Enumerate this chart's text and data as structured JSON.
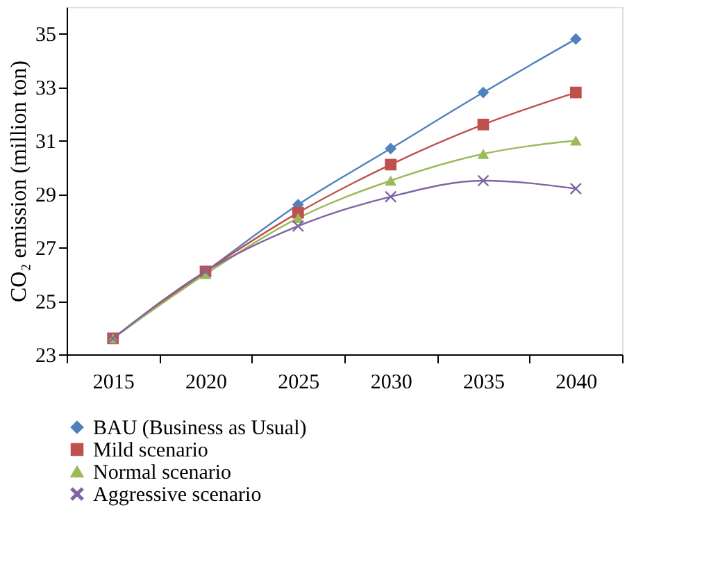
{
  "chart_data": {
    "type": "line",
    "ylabel": "CO₂ emission (million ton)",
    "categories": [
      "2015",
      "2020",
      "2025",
      "2030",
      "2035",
      "2040"
    ],
    "series": [
      {
        "name": "BAU (Business as Usual)",
        "color": "#4f81bd",
        "marker": "diamond",
        "values": [
          23.6,
          26.1,
          28.6,
          30.7,
          32.8,
          34.8
        ]
      },
      {
        "name": "Mild scenario",
        "color": "#c0504d",
        "marker": "square",
        "values": [
          23.6,
          26.1,
          28.3,
          30.1,
          31.6,
          32.8
        ]
      },
      {
        "name": "Normal scenario",
        "color": "#9bbb59",
        "marker": "triangle",
        "values": [
          23.6,
          26.0,
          28.1,
          29.5,
          30.5,
          31.0
        ]
      },
      {
        "name": "Aggressive scenario",
        "color": "#8064a2",
        "marker": "cross",
        "values": [
          23.6,
          26.1,
          27.8,
          28.9,
          29.5,
          29.2
        ]
      }
    ],
    "ylim": [
      23,
      36
    ],
    "yticks": [
      23,
      25,
      27,
      29,
      31,
      33,
      35
    ],
    "grid": false,
    "legend": "bottom",
    "line_style": "solid"
  }
}
